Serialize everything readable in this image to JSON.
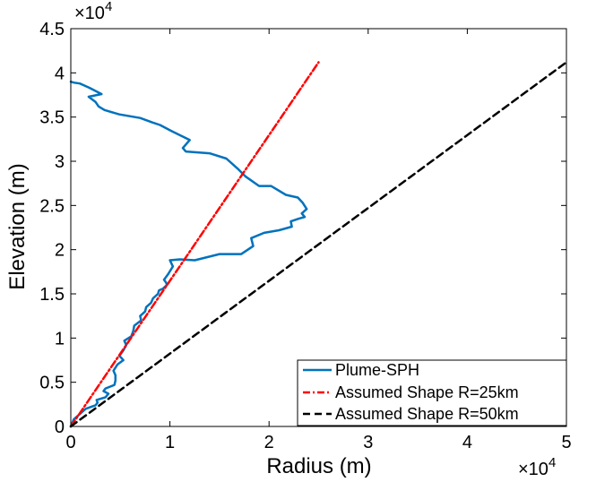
{
  "chart_data": {
    "type": "line",
    "title": "",
    "xlabel": "Radius (m)",
    "ylabel": "Elevation (m)",
    "xlim": [
      0,
      50000
    ],
    "ylim": [
      0,
      45000
    ],
    "x_ticks": [
      0,
      1,
      2,
      3,
      4,
      5
    ],
    "y_ticks": [
      0,
      0.5,
      1,
      1.5,
      2,
      2.5,
      3,
      3.5,
      4,
      4.5
    ],
    "x_exponent_base": "×10",
    "x_exponent_power": "4",
    "y_exponent_base": "×10",
    "y_exponent_power": "4",
    "grid": false,
    "legend_position": "bottom-right",
    "series": [
      {
        "name": "Plume-SPH",
        "color": "#0072BD",
        "style": "solid",
        "x": [
          0,
          300,
          900,
          1200,
          1500,
          2500,
          2700,
          2600,
          3500,
          3800,
          3300,
          3500,
          4400,
          4500,
          4500,
          4300,
          4700,
          5300,
          4900,
          5300,
          5600,
          5400,
          6100,
          6300,
          6400,
          7100,
          7000,
          7500,
          7600,
          8100,
          8300,
          8800,
          8900,
          9300,
          9700,
          9600,
          9400,
          9800,
          10300,
          10000,
          11000,
          12500,
          15000,
          17200,
          18400,
          18200,
          19500,
          21000,
          22300,
          22200,
          23000,
          23600,
          23300,
          23800,
          23400,
          22900,
          21700,
          20200,
          19000,
          17600,
          16800,
          15700,
          14000,
          11600,
          11300,
          12000,
          10200,
          9000,
          8200,
          7000,
          4900,
          3400,
          2800,
          2500,
          1800,
          3100,
          1900,
          1300,
          900,
          300,
          0
        ],
        "y": [
          0,
          800,
          1400,
          1700,
          2000,
          2400,
          2700,
          3000,
          3300,
          3700,
          4000,
          4300,
          4700,
          5200,
          5800,
          6300,
          7000,
          7500,
          8000,
          8600,
          9200,
          9700,
          10200,
          10800,
          11400,
          12000,
          12500,
          13000,
          13500,
          14000,
          14500,
          15000,
          15400,
          15600,
          16000,
          16300,
          16600,
          17200,
          18100,
          18800,
          18900,
          18800,
          19500,
          19500,
          20400,
          21300,
          21900,
          22200,
          22600,
          23200,
          23500,
          23700,
          24100,
          24600,
          25300,
          25900,
          26200,
          27200,
          27200,
          28300,
          29200,
          30300,
          30900,
          31100,
          31500,
          32400,
          33400,
          34100,
          34400,
          34900,
          35300,
          35800,
          36200,
          36700,
          37300,
          37600,
          38300,
          38600,
          38800,
          38900,
          39000
        ]
      },
      {
        "name": "Assumed Shape R=25km",
        "color": "#FF0000",
        "style": "dash-dot",
        "x": [
          0,
          25000
        ],
        "y": [
          0,
          41200
        ]
      },
      {
        "name": "Assumed Shape R=50km",
        "color": "#000000",
        "style": "dashed",
        "x": [
          0,
          50000
        ],
        "y": [
          0,
          41200
        ]
      }
    ]
  }
}
